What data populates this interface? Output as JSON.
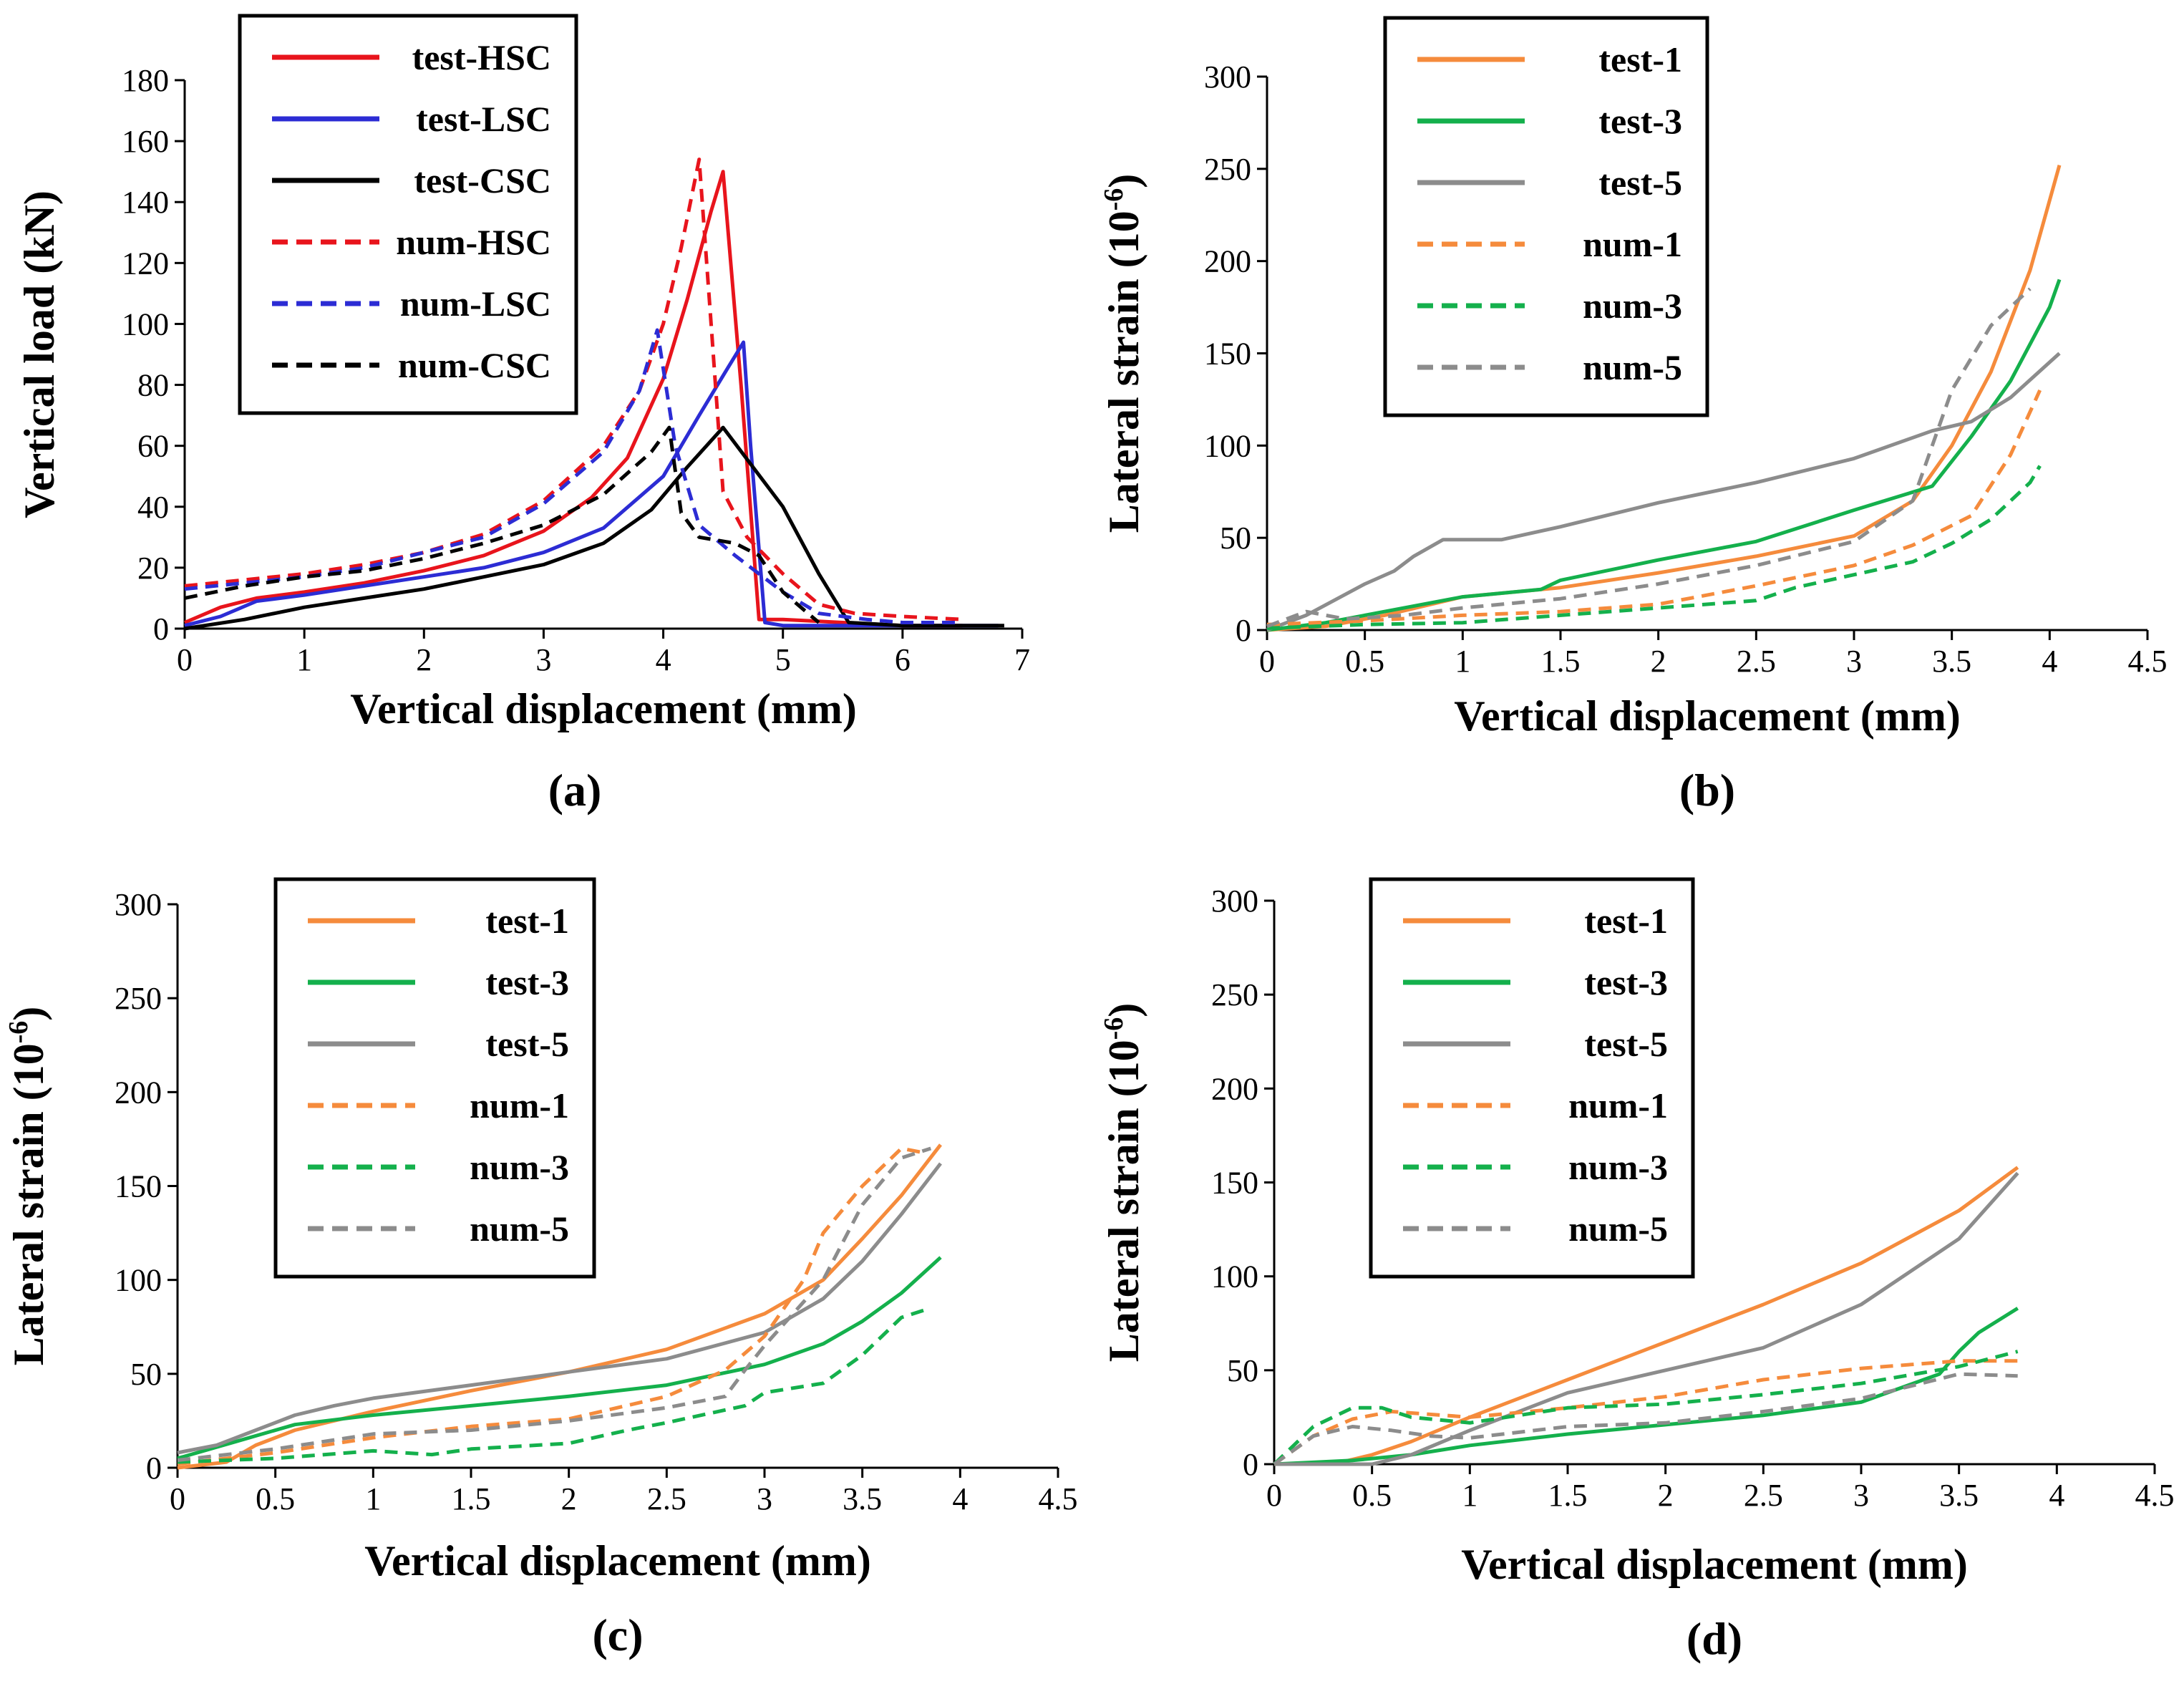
{
  "chart_data": [
    {
      "type": "line",
      "panel_label": "(a)",
      "xlabel": "Vertical displacement (mm)",
      "ylabel": "Vertical load (kN)",
      "xlim": [
        0,
        7
      ],
      "ylim": [
        0,
        180
      ],
      "xticks": [
        "0",
        "1",
        "2",
        "3",
        "4",
        "5",
        "6",
        "7"
      ],
      "yticks": [
        "0",
        "20",
        "40",
        "60",
        "80",
        "100",
        "120",
        "140",
        "160",
        "180"
      ],
      "legend_position": "top-right",
      "series": [
        {
          "name": "test-HSC",
          "color": "#e8141c",
          "dashed": false,
          "x": [
            0,
            0.3,
            0.6,
            1,
            1.5,
            2,
            2.5,
            3,
            3.4,
            3.7,
            4,
            4.2,
            4.4,
            4.5,
            4.65,
            4.8,
            5,
            5.5,
            6,
            6.5
          ],
          "y": [
            2,
            7,
            10,
            12,
            15,
            19,
            24,
            32,
            43,
            56,
            82,
            108,
            137,
            150,
            80,
            3,
            3,
            2,
            1,
            1
          ]
        },
        {
          "name": "test-LSC",
          "color": "#2c2cd4",
          "dashed": false,
          "x": [
            0,
            0.3,
            0.6,
            1,
            1.5,
            2,
            2.5,
            3,
            3.5,
            4,
            4.3,
            4.5,
            4.67,
            4.73,
            4.85,
            5,
            5.5,
            6,
            6.8
          ],
          "y": [
            1,
            4,
            9,
            11,
            14,
            17,
            20,
            25,
            33,
            50,
            70,
            83,
            94,
            60,
            2,
            1,
            1,
            1,
            1
          ]
        },
        {
          "name": "test-CSC",
          "color": "#000000",
          "dashed": false,
          "x": [
            0,
            0.5,
            1,
            1.5,
            2,
            2.5,
            3,
            3.5,
            3.9,
            4.2,
            4.5,
            5,
            5.3,
            5.55,
            6,
            6.5,
            6.85
          ],
          "y": [
            0,
            3,
            7,
            10,
            13,
            17,
            21,
            28,
            39,
            53,
            66,
            40,
            18,
            2,
            1,
            1,
            1
          ]
        },
        {
          "name": "num-HSC",
          "color": "#e8141c",
          "dashed": true,
          "x": [
            0,
            0.5,
            1,
            1.5,
            2,
            2.5,
            3,
            3.5,
            3.8,
            4,
            4.15,
            4.3,
            4.4,
            4.5,
            4.7,
            5,
            5.3,
            5.6,
            6,
            6.5
          ],
          "y": [
            14,
            16,
            18,
            21,
            25,
            31,
            42,
            60,
            78,
            100,
            125,
            154,
            100,
            45,
            30,
            18,
            8,
            5,
            4,
            3
          ]
        },
        {
          "name": "num-LSC",
          "color": "#2c2cd4",
          "dashed": true,
          "x": [
            0,
            0.5,
            1,
            1.5,
            2,
            2.5,
            3,
            3.5,
            3.8,
            3.95,
            4.1,
            4.3,
            4.6,
            5,
            5.3,
            5.7,
            6,
            6.5
          ],
          "y": [
            13,
            15,
            17,
            20,
            25,
            30,
            41,
            58,
            78,
            98,
            60,
            34,
            24,
            12,
            5,
            3,
            2,
            2
          ]
        },
        {
          "name": "num-CSC",
          "color": "#000000",
          "dashed": true,
          "x": [
            0,
            0.5,
            1,
            1.5,
            2,
            2.5,
            3,
            3.5,
            3.9,
            4.05,
            4.15,
            4.3,
            4.6,
            4.8,
            5,
            5.3
          ],
          "y": [
            10,
            14,
            17,
            19,
            23,
            28,
            34,
            44,
            58,
            66,
            38,
            30,
            28,
            24,
            12,
            2
          ]
        }
      ]
    },
    {
      "type": "line",
      "panel_label": "(b)",
      "xlabel": "Vertical displacement (mm)",
      "ylabel": "Lateral strain (10",
      "ylabel_sup": "-6",
      "ylabel_end": ")",
      "xlim": [
        0,
        4.5
      ],
      "ylim": [
        0,
        300
      ],
      "xticks": [
        "0",
        "0.5",
        "1",
        "1.5",
        "2",
        "2.5",
        "3",
        "3.5",
        "4",
        "4.5"
      ],
      "yticks": [
        "0",
        "50",
        "100",
        "150",
        "200",
        "250",
        "300"
      ],
      "legend_position": "top-left",
      "series": [
        {
          "name": "test-1",
          "color": "#f58b3c",
          "dashed": false,
          "x": [
            0,
            0.3,
            0.6,
            1,
            1.5,
            2,
            2.5,
            3,
            3.3,
            3.5,
            3.7,
            3.9,
            4.05
          ],
          "y": [
            0,
            2,
            8,
            18,
            23,
            31,
            40,
            51,
            70,
            100,
            140,
            195,
            252
          ]
        },
        {
          "name": "test-3",
          "color": "#14b04c",
          "dashed": false,
          "x": [
            0,
            0.3,
            0.7,
            1,
            1.4,
            1.5,
            2,
            2.5,
            3,
            3.4,
            3.6,
            3.8,
            4,
            4.05
          ],
          "y": [
            0,
            4,
            12,
            18,
            22,
            27,
            38,
            48,
            65,
            78,
            105,
            135,
            175,
            190
          ]
        },
        {
          "name": "test-5",
          "color": "#8c8c8c",
          "dashed": false,
          "x": [
            0,
            0.2,
            0.5,
            0.65,
            0.75,
            0.9,
            1.2,
            1.5,
            2,
            2.5,
            3,
            3.4,
            3.6,
            3.8,
            4.05
          ],
          "y": [
            0,
            8,
            25,
            32,
            40,
            49,
            49,
            56,
            69,
            80,
            93,
            108,
            113,
            126,
            150
          ]
        },
        {
          "name": "num-1",
          "color": "#f58b3c",
          "dashed": true,
          "x": [
            0,
            0.5,
            1,
            1.5,
            2,
            2.5,
            3,
            3.3,
            3.6,
            3.8,
            3.95
          ],
          "y": [
            3,
            5,
            8,
            10,
            14,
            24,
            35,
            46,
            62,
            95,
            130
          ]
        },
        {
          "name": "num-3",
          "color": "#14b04c",
          "dashed": true,
          "x": [
            0,
            0.5,
            1,
            1.5,
            2,
            2.5,
            2.7,
            3,
            3.3,
            3.5,
            3.7,
            3.9,
            3.95
          ],
          "y": [
            1,
            3,
            4,
            8,
            12,
            16,
            23,
            30,
            37,
            47,
            60,
            80,
            89
          ]
        },
        {
          "name": "num-5",
          "color": "#8c8c8c",
          "dashed": true,
          "x": [
            0,
            0.2,
            0.4,
            0.7,
            1,
            1.5,
            2,
            2.5,
            3,
            3.3,
            3.5,
            3.7,
            3.9
          ],
          "y": [
            2,
            10,
            6,
            8,
            12,
            17,
            25,
            35,
            48,
            70,
            130,
            165,
            185
          ]
        }
      ]
    },
    {
      "type": "line",
      "panel_label": "(c)",
      "xlabel": "Vertical displacement (mm)",
      "ylabel": "Lateral strain (10",
      "ylabel_sup": "-6",
      "ylabel_end": ")",
      "xlim": [
        0,
        4.5
      ],
      "ylim": [
        0,
        300
      ],
      "xticks": [
        "0",
        "0.5",
        "1",
        "1.5",
        "2",
        "2.5",
        "3",
        "3.5",
        "4",
        "4.5"
      ],
      "yticks": [
        "0",
        "50",
        "100",
        "150",
        "200",
        "250",
        "300"
      ],
      "legend_position": "top",
      "series": [
        {
          "name": "test-1",
          "color": "#f58b3c",
          "dashed": false,
          "x": [
            0,
            0.25,
            0.4,
            0.6,
            1,
            1.5,
            2,
            2.5,
            3,
            3.3,
            3.5,
            3.7,
            3.9
          ],
          "y": [
            0,
            3,
            12,
            20,
            30,
            41,
            51,
            63,
            82,
            100,
            122,
            145,
            172
          ]
        },
        {
          "name": "test-3",
          "color": "#14b04c",
          "dashed": false,
          "x": [
            0,
            0.3,
            0.6,
            1,
            1.5,
            2,
            2.5,
            3,
            3.3,
            3.5,
            3.7,
            3.9
          ],
          "y": [
            5,
            14,
            23,
            28,
            33,
            38,
            44,
            55,
            66,
            78,
            93,
            112
          ]
        },
        {
          "name": "test-5",
          "color": "#8c8c8c",
          "dashed": false,
          "x": [
            0,
            0.2,
            0.4,
            0.6,
            0.8,
            1,
            1.5,
            2,
            2.5,
            3,
            3.3,
            3.5,
            3.7,
            3.9
          ],
          "y": [
            8,
            12,
            20,
            28,
            33,
            37,
            44,
            51,
            58,
            72,
            90,
            110,
            135,
            162
          ]
        },
        {
          "name": "num-1",
          "color": "#f58b3c",
          "dashed": true,
          "x": [
            0,
            0.5,
            1,
            1.5,
            2,
            2.5,
            2.8,
            3,
            3.2,
            3.3,
            3.5,
            3.7,
            3.8
          ],
          "y": [
            2,
            8,
            16,
            22,
            26,
            38,
            52,
            70,
            100,
            125,
            150,
            170,
            168
          ]
        },
        {
          "name": "num-3",
          "color": "#14b04c",
          "dashed": true,
          "x": [
            0,
            0.5,
            1,
            1.3,
            1.5,
            2,
            2.3,
            2.5,
            2.9,
            3,
            3.3,
            3.5,
            3.6,
            3.7,
            3.85
          ],
          "y": [
            3,
            5,
            9,
            7,
            10,
            13,
            20,
            24,
            33,
            40,
            45,
            60,
            70,
            80,
            85
          ]
        },
        {
          "name": "num-5",
          "color": "#8c8c8c",
          "dashed": true,
          "x": [
            0,
            0.5,
            1,
            1.5,
            2,
            2.5,
            2.8,
            2.9,
            3,
            3.3,
            3.5,
            3.7,
            3.85
          ],
          "y": [
            4,
            10,
            18,
            20,
            25,
            32,
            38,
            52,
            65,
            100,
            140,
            165,
            170
          ]
        }
      ]
    },
    {
      "type": "line",
      "panel_label": "(d)",
      "xlabel": "Vertical displacement (mm)",
      "ylabel": "Lateral strain (10",
      "ylabel_sup": "-6",
      "ylabel_end": ")",
      "xlim": [
        0,
        4.5
      ],
      "ylim": [
        0,
        300
      ],
      "xticks": [
        "0",
        "0.5",
        "1",
        "1.5",
        "2",
        "2.5",
        "3",
        "3.5",
        "4",
        "4.5"
      ],
      "yticks": [
        "0",
        "50",
        "100",
        "150",
        "200",
        "250",
        "300"
      ],
      "legend_position": "top",
      "series": [
        {
          "name": "test-1",
          "color": "#f58b3c",
          "dashed": false,
          "x": [
            0,
            0.3,
            0.5,
            0.7,
            1,
            1.5,
            2,
            2.5,
            3,
            3.5,
            3.8
          ],
          "y": [
            0,
            0,
            5,
            12,
            25,
            45,
            65,
            85,
            107,
            135,
            158
          ]
        },
        {
          "name": "test-3",
          "color": "#14b04c",
          "dashed": false,
          "x": [
            0,
            0.4,
            0.7,
            1,
            1.5,
            2,
            2.5,
            3,
            3.4,
            3.5,
            3.6,
            3.8
          ],
          "y": [
            0,
            2,
            5,
            10,
            16,
            21,
            26,
            33,
            48,
            60,
            70,
            83
          ]
        },
        {
          "name": "test-5",
          "color": "#8c8c8c",
          "dashed": false,
          "x": [
            0,
            0.5,
            0.7,
            1,
            1.3,
            1.5,
            2,
            2.5,
            3,
            3.5,
            3.8
          ],
          "y": [
            0,
            0,
            5,
            18,
            30,
            38,
            50,
            62,
            85,
            120,
            155
          ]
        },
        {
          "name": "num-1",
          "color": "#f58b3c",
          "dashed": true,
          "x": [
            0,
            0.2,
            0.4,
            0.6,
            1,
            1.5,
            2,
            2.5,
            3,
            3.5,
            3.8
          ],
          "y": [
            0,
            15,
            24,
            28,
            25,
            30,
            36,
            45,
            51,
            55,
            55
          ]
        },
        {
          "name": "num-3",
          "color": "#14b04c",
          "dashed": true,
          "x": [
            0,
            0.2,
            0.4,
            0.55,
            0.7,
            1,
            1.5,
            2,
            2.5,
            3,
            3.5,
            3.8
          ],
          "y": [
            0,
            20,
            30,
            30,
            25,
            22,
            30,
            32,
            37,
            43,
            52,
            60
          ]
        },
        {
          "name": "num-5",
          "color": "#8c8c8c",
          "dashed": true,
          "x": [
            0,
            0.2,
            0.4,
            0.6,
            0.8,
            1,
            1.5,
            2,
            2.5,
            3,
            3.5,
            3.8
          ],
          "y": [
            0,
            15,
            20,
            18,
            15,
            14,
            20,
            22,
            28,
            35,
            48,
            47
          ]
        }
      ]
    }
  ]
}
